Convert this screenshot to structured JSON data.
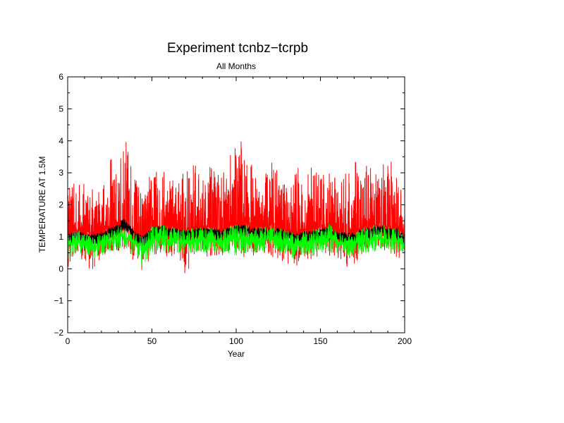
{
  "chart_data": {
    "type": "line",
    "title": "Experiment tcnbz−tcrpb",
    "subtitle": "All Months",
    "xlabel": "Year",
    "ylabel": "TEMPERATURE AT 1.5M",
    "xlim": [
      0,
      200
    ],
    "ylim": [
      -2,
      6
    ],
    "xticks": [
      0,
      50,
      100,
      150,
      200
    ],
    "yticks": [
      -2,
      -1,
      0,
      1,
      2,
      3,
      4,
      5,
      6
    ],
    "xtick_labels": [
      "0",
      "50",
      "100",
      "150",
      "200"
    ],
    "ytick_labels": [
      "−2",
      "−1",
      "0",
      "1",
      "2",
      "3",
      "4",
      "5",
      "6"
    ],
    "grid": false,
    "legend": "none",
    "colors": {
      "series_1": "#ff0000",
      "series_2": "#000000",
      "series_3": "#00ff00"
    },
    "series": [
      {
        "color": "#ff0000",
        "x": [
          0,
          5,
          10,
          15,
          20,
          25,
          30,
          33,
          35,
          40,
          45,
          50,
          55,
          60,
          65,
          70,
          75,
          80,
          85,
          90,
          95,
          100,
          105,
          110,
          115,
          120,
          125,
          130,
          135,
          140,
          145,
          150,
          155,
          160,
          165,
          170,
          175,
          180,
          185,
          190,
          195,
          200
        ],
        "y_min": [
          0.0,
          0.3,
          0.2,
          -0.15,
          0.4,
          0.5,
          0.3,
          0.6,
          0.5,
          0.2,
          -0.1,
          0.4,
          0.5,
          0.3,
          0.5,
          -0.25,
          0.4,
          0.5,
          0.3,
          0.4,
          0.5,
          0.5,
          0.3,
          0.4,
          0.5,
          0.4,
          0.3,
          0.2,
          -0.1,
          0.4,
          0.2,
          0.5,
          0.4,
          0.3,
          -0.05,
          0.1,
          0.4,
          0.5,
          0.6,
          0.5,
          0.3,
          0.4
        ],
        "y_max": [
          2.6,
          2.7,
          2.8,
          2.5,
          2.6,
          3.6,
          3.0,
          4.1,
          4.1,
          3.0,
          2.5,
          3.2,
          3.1,
          3.5,
          2.8,
          3.1,
          3.4,
          3.0,
          3.2,
          3.0,
          3.3,
          4.15,
          4.0,
          3.1,
          3.0,
          3.4,
          3.0,
          2.7,
          3.3,
          3.0,
          3.2,
          3.0,
          3.2,
          2.9,
          3.0,
          3.3,
          3.7,
          3.2,
          3.2,
          3.5,
          3.2,
          1.9
        ],
        "y_mean": [
          1.1,
          1.2,
          1.2,
          1.1,
          1.2,
          1.3,
          1.4,
          1.5,
          1.4,
          1.1,
          1.0,
          1.3,
          1.3,
          1.3,
          1.3,
          1.2,
          1.3,
          1.3,
          1.3,
          1.2,
          1.3,
          1.4,
          1.4,
          1.3,
          1.3,
          1.3,
          1.3,
          1.2,
          1.1,
          1.2,
          1.2,
          1.3,
          1.3,
          1.2,
          1.1,
          1.1,
          1.3,
          1.3,
          1.4,
          1.3,
          1.3,
          1.1
        ]
      },
      {
        "color": "#000000",
        "x": [
          0,
          5,
          10,
          15,
          20,
          25,
          30,
          33,
          35,
          40,
          45,
          50,
          55,
          60,
          65,
          70,
          75,
          80,
          85,
          90,
          95,
          100,
          105,
          110,
          115,
          120,
          125,
          130,
          135,
          140,
          145,
          150,
          155,
          160,
          165,
          170,
          175,
          180,
          185,
          190,
          195,
          200
        ],
        "y": [
          0.9,
          1.0,
          0.95,
          0.9,
          1.0,
          1.1,
          1.2,
          1.4,
          1.3,
          1.0,
          0.85,
          1.1,
          1.2,
          1.1,
          1.1,
          1.0,
          1.1,
          1.1,
          1.1,
          1.05,
          1.1,
          1.2,
          1.2,
          1.1,
          1.1,
          1.1,
          1.1,
          1.05,
          0.9,
          1.0,
          1.0,
          1.1,
          1.1,
          1.0,
          0.95,
          0.95,
          1.1,
          1.1,
          1.2,
          1.1,
          1.1,
          0.9
        ]
      },
      {
        "color": "#00ff00",
        "x": [
          0,
          5,
          10,
          15,
          20,
          25,
          30,
          33,
          35,
          40,
          45,
          50,
          55,
          60,
          65,
          70,
          75,
          80,
          85,
          90,
          95,
          100,
          105,
          110,
          115,
          120,
          125,
          130,
          135,
          140,
          145,
          150,
          155,
          160,
          165,
          170,
          175,
          180,
          185,
          190,
          195,
          200
        ],
        "y_min": [
          0.3,
          0.5,
          0.4,
          0.3,
          0.4,
          0.5,
          0.6,
          0.7,
          0.5,
          0.4,
          0.0,
          0.5,
          0.6,
          0.5,
          0.5,
          0.4,
          0.5,
          0.5,
          0.5,
          0.5,
          0.5,
          0.4,
          0.5,
          0.5,
          0.5,
          0.5,
          0.5,
          0.4,
          0.3,
          0.4,
          0.4,
          0.5,
          0.5,
          0.5,
          0.4,
          0.4,
          0.5,
          0.5,
          0.6,
          0.5,
          0.5,
          0.5
        ],
        "y_max": [
          1.1,
          1.2,
          1.1,
          1.0,
          1.1,
          1.2,
          1.3,
          1.4,
          1.3,
          1.1,
          1.0,
          1.3,
          1.4,
          1.3,
          1.3,
          1.2,
          1.3,
          1.3,
          1.3,
          1.2,
          1.3,
          1.4,
          1.4,
          1.3,
          1.3,
          1.4,
          1.3,
          1.2,
          1.1,
          1.2,
          1.2,
          1.3,
          1.4,
          1.2,
          1.1,
          1.1,
          1.3,
          1.3,
          1.5,
          1.3,
          1.3,
          1.0
        ],
        "y_mean": [
          0.75,
          0.85,
          0.8,
          0.7,
          0.8,
          0.9,
          0.95,
          1.05,
          0.95,
          0.8,
          0.7,
          0.9,
          1.0,
          0.9,
          0.9,
          0.85,
          0.9,
          0.9,
          0.9,
          0.85,
          0.9,
          0.95,
          0.95,
          0.9,
          0.9,
          0.95,
          0.9,
          0.85,
          0.75,
          0.8,
          0.8,
          0.9,
          0.95,
          0.85,
          0.8,
          0.8,
          0.9,
          0.9,
          1.0,
          0.9,
          0.9,
          0.75
        ]
      }
    ]
  }
}
